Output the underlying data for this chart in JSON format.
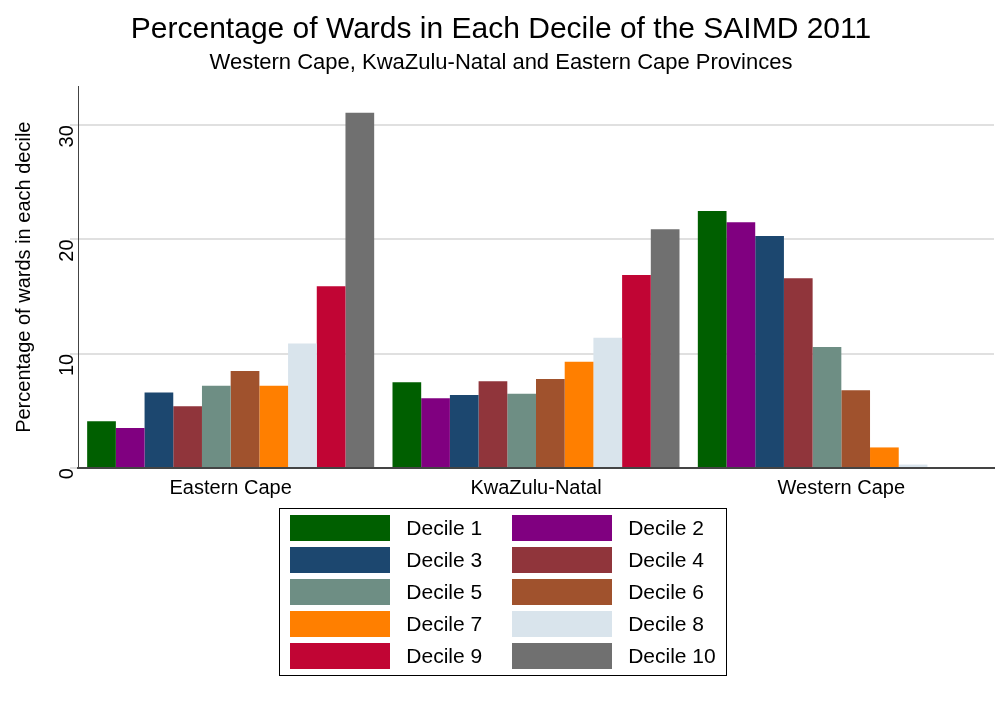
{
  "chart_data": {
    "type": "bar",
    "title": "Percentage of Wards in Each Decile of the SAIMD 2011",
    "subtitle": "Western Cape, KwaZulu-Natal and Eastern Cape Provinces",
    "ylabel": "Percentage of wards in each decile",
    "categories": [
      "Eastern Cape",
      "KwaZulu-Natal",
      "Western Cape"
    ],
    "series": [
      {
        "name": "Decile 1",
        "color": "#005f00",
        "values": [
          4.1,
          7.5,
          22.5
        ]
      },
      {
        "name": "Decile 2",
        "color": "#800080",
        "values": [
          3.5,
          6.1,
          21.5
        ]
      },
      {
        "name": "Decile 3",
        "color": "#1c476f",
        "values": [
          6.6,
          6.4,
          20.3
        ]
      },
      {
        "name": "Decile 4",
        "color": "#90353b",
        "values": [
          5.4,
          7.6,
          16.6
        ]
      },
      {
        "name": "Decile 5",
        "color": "#6e8e84",
        "values": [
          7.2,
          6.5,
          10.6
        ]
      },
      {
        "name": "Decile 6",
        "color": "#a0522d",
        "values": [
          8.5,
          7.8,
          6.8
        ]
      },
      {
        "name": "Decile 7",
        "color": "#ff7f00",
        "values": [
          7.2,
          9.3,
          1.8
        ]
      },
      {
        "name": "Decile 8",
        "color": "#d9e4ec",
        "values": [
          10.9,
          11.4,
          0.3
        ]
      },
      {
        "name": "Decile 9",
        "color": "#c10534",
        "values": [
          15.9,
          16.9,
          0
        ]
      },
      {
        "name": "Decile 10",
        "color": "#707070",
        "values": [
          31.1,
          20.9,
          0
        ]
      }
    ],
    "ylim": [
      0,
      33.4
    ],
    "yticks": [
      0,
      10,
      20,
      30
    ],
    "grid": "y",
    "legend": "bottom"
  }
}
